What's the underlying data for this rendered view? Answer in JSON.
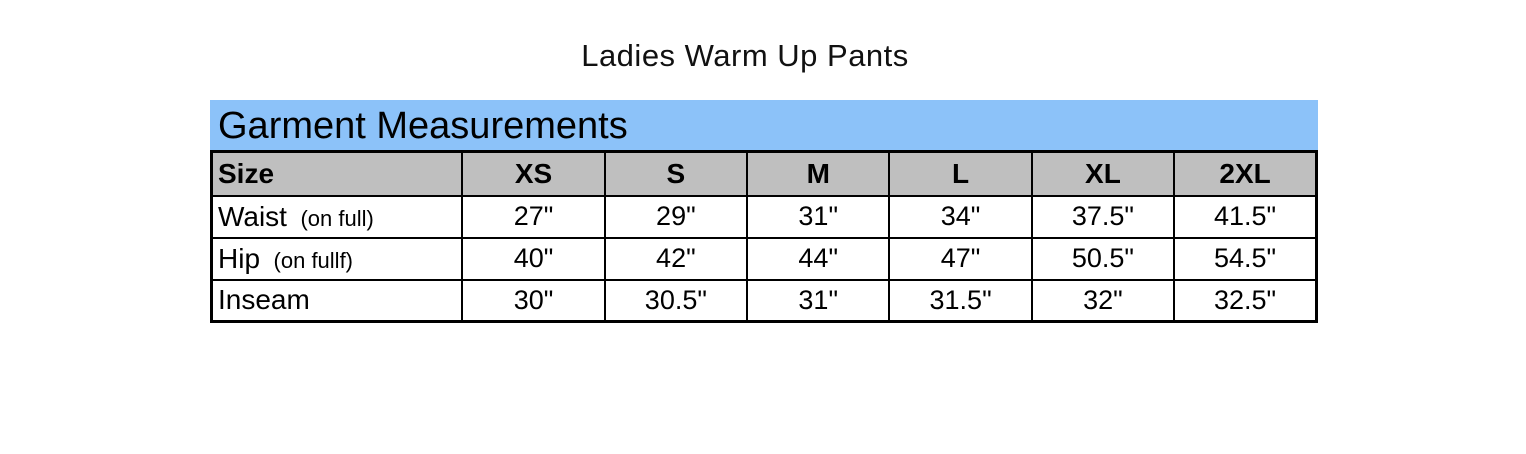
{
  "page": {
    "title": "Ladies Warm Up Pants"
  },
  "table": {
    "header_bar": "Garment Measurements",
    "columns": [
      "Size",
      "XS",
      "S",
      "M",
      "L",
      "XL",
      "2XL"
    ],
    "rows": [
      {
        "label": "Waist",
        "label_note": "(on full)",
        "values": [
          "27\"",
          "29\"",
          "31\"",
          "34\"",
          "37.5\"",
          "41.5\""
        ]
      },
      {
        "label": "Hip",
        "label_note": "(on fullf)",
        "values": [
          "40\"",
          "42\"",
          "44\"",
          "47\"",
          "50.5\"",
          "54.5\""
        ]
      },
      {
        "label": "Inseam",
        "label_note": "",
        "values": [
          "30\"",
          "30.5\"",
          "31\"",
          "31.5\"",
          "32\"",
          "32.5\""
        ]
      }
    ],
    "colors": {
      "header_bar_bg": "#8CC2F9",
      "column_header_bg": "#BFBFBF",
      "border": "#000000"
    }
  }
}
